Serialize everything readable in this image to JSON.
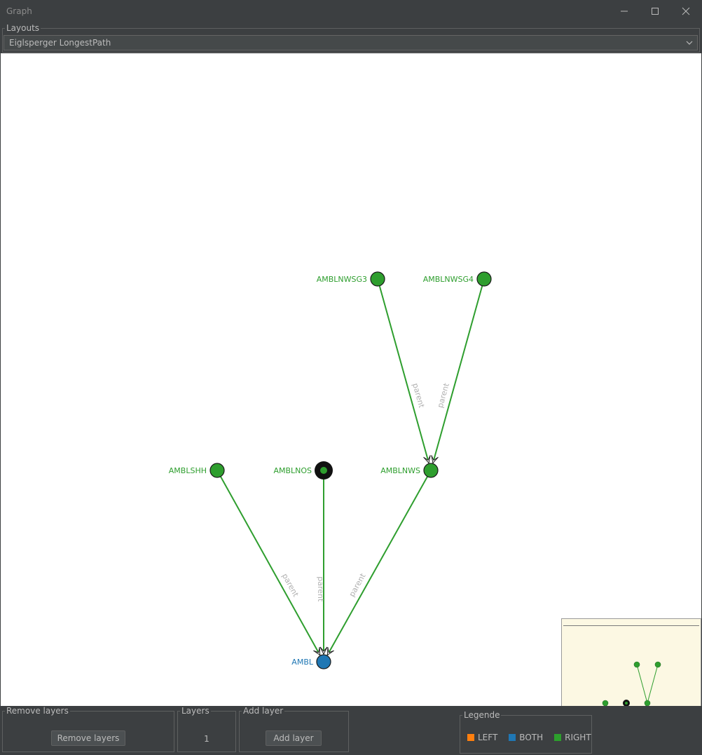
{
  "window": {
    "title": "Graph",
    "controls": [
      "minimize-icon",
      "maximize-icon",
      "close-icon"
    ]
  },
  "layouts": {
    "group_label": "Layouts",
    "selected": "Eiglsperger LongestPath"
  },
  "graph": {
    "edge_label": "parent",
    "nodes": [
      {
        "id": "AMBLNWSG3",
        "label": "AMBLNWSG3",
        "color": "#2e9e2e",
        "kind": "RIGHT"
      },
      {
        "id": "AMBLNWSG4",
        "label": "AMBLNWSG4",
        "color": "#2e9e2e",
        "kind": "RIGHT"
      },
      {
        "id": "AMBLSHH",
        "label": "AMBLSHH",
        "color": "#2e9e2e",
        "kind": "RIGHT"
      },
      {
        "id": "AMBLNOS",
        "label": "AMBLNOS",
        "color": "#2e9e2e",
        "kind": "RIGHT",
        "selected": true
      },
      {
        "id": "AMBLNWS",
        "label": "AMBLNWS",
        "color": "#2e9e2e",
        "kind": "RIGHT"
      },
      {
        "id": "AMBL",
        "label": "AMBL",
        "color": "#1f77b4",
        "kind": "BOTH"
      }
    ],
    "edges": [
      {
        "from": "AMBLNWSG3",
        "to": "AMBLNWS",
        "label": "parent"
      },
      {
        "from": "AMBLNWSG4",
        "to": "AMBLNWS",
        "label": "parent"
      },
      {
        "from": "AMBLSHH",
        "to": "AMBL",
        "label": "parent"
      },
      {
        "from": "AMBLNOS",
        "to": "AMBL",
        "label": "parent"
      },
      {
        "from": "AMBLNWS",
        "to": "AMBL",
        "label": "parent"
      }
    ]
  },
  "bottom": {
    "remove_group": "Remove layers",
    "remove_button": "Remove layers",
    "layers_group": "Layers",
    "layers_value": "1",
    "add_group": "Add layer",
    "add_button": "Add layer",
    "legend_group": "Legende",
    "legend": [
      {
        "label": "LEFT",
        "color": "#ff7f0e"
      },
      {
        "label": "BOTH",
        "color": "#1f77b4"
      },
      {
        "label": "RIGHT",
        "color": "#2ca02c"
      }
    ]
  }
}
